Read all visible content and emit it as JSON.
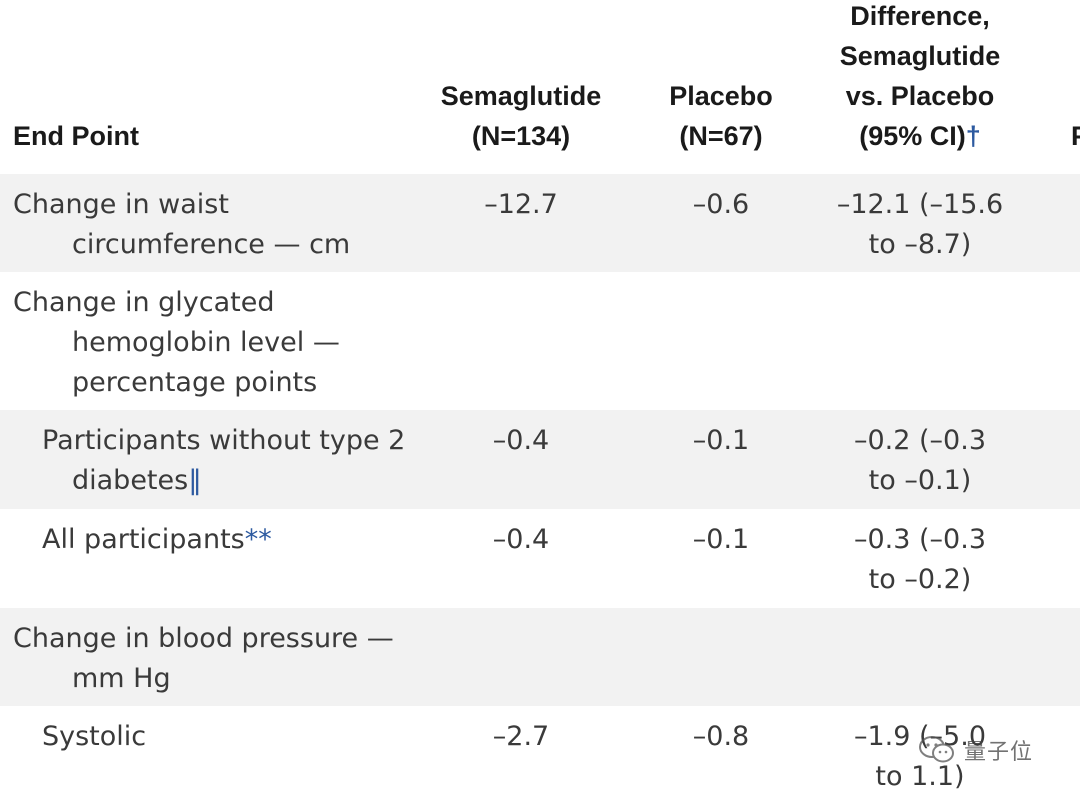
{
  "columns": {
    "end_point": "End Point",
    "semaglutide": [
      "Semaglutide",
      "(N=134)"
    ],
    "placebo": [
      "Placebo",
      "(N=67)"
    ],
    "difference": [
      "Difference,",
      "Semaglutide",
      "vs. Placebo",
      "(95% CI)"
    ],
    "difference_mark": "†",
    "cut_off": "P"
  },
  "rows": [
    {
      "label_lines": [
        "Change in waist",
        "circumference — cm"
      ],
      "semaglutide": "–12.7",
      "placebo": "–0.6",
      "difference_lines": [
        "–12.1 (–15.6",
        "to –8.7)"
      ]
    },
    {
      "label_lines": [
        "Change in glycated",
        "hemoglobin level —",
        "percentage points"
      ]
    },
    {
      "label_lines": [
        "Participants without type 2",
        "diabetes"
      ],
      "label_mark": "‖",
      "semaglutide": "–0.4",
      "placebo": "–0.1",
      "difference_lines": [
        "–0.2 (–0.3",
        "to –0.1)"
      ]
    },
    {
      "label_lines": [
        "All participants"
      ],
      "label_mark": "**",
      "semaglutide": "–0.4",
      "placebo": "–0.1",
      "difference_lines": [
        "–0.3 (–0.3",
        "to –0.2)"
      ]
    },
    {
      "label_lines": [
        "Change in blood pressure —",
        "mm Hg"
      ]
    },
    {
      "label_lines": [
        "Systolic"
      ],
      "semaglutide": "–2.7",
      "placebo": "–0.8",
      "difference_lines": [
        "–1.9 (–5.0",
        "to 1.1)"
      ]
    }
  ],
  "watermark": {
    "text": "量子位",
    "icon": "wechat-logo-icon"
  }
}
